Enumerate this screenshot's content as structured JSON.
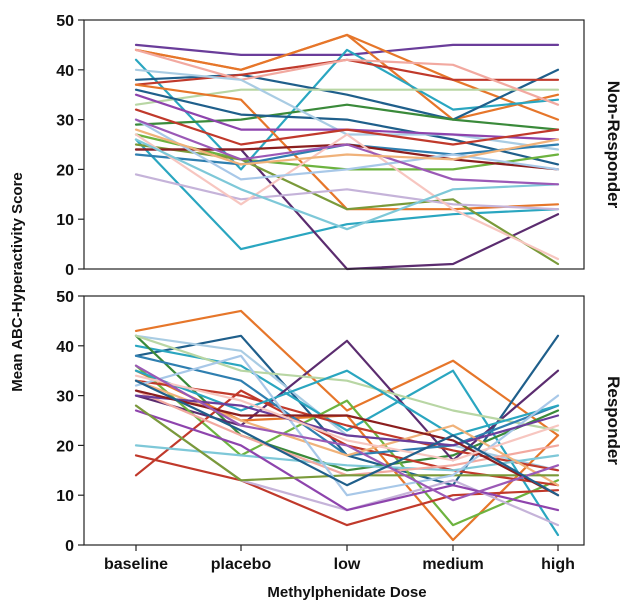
{
  "chart_data": {
    "type": "line",
    "xlabel": "Methylphenidate Dose",
    "ylabel": "Mean ABC-Hyperactivity Score",
    "categories": [
      "baseline",
      "placebo",
      "low",
      "medium",
      "high"
    ],
    "ylim": [
      0,
      50
    ],
    "yticks": [
      0,
      10,
      20,
      30,
      40,
      50
    ],
    "grid": false,
    "panels": [
      {
        "strip_label": "Non-Responder",
        "series": [
          {
            "color": "#6a3d9a",
            "values": [
              45,
              43,
              43,
              45,
              45
            ]
          },
          {
            "color": "#e6762a",
            "values": [
              44,
              40,
              47,
              30,
              35
            ]
          },
          {
            "color": "#e6762a",
            "values": [
              44,
              40,
              47,
              38,
              30
            ]
          },
          {
            "color": "#2aa6c0",
            "values": [
              42,
              20,
              44,
              32,
              34
            ]
          },
          {
            "color": "#1f5f8b",
            "values": [
              38,
              39,
              35,
              30,
              40
            ]
          },
          {
            "color": "#c0392b",
            "values": [
              37,
              39,
              42,
              38,
              38
            ]
          },
          {
            "color": "#b8d6a4",
            "values": [
              33,
              36,
              36,
              36,
              36
            ]
          },
          {
            "color": "#f2a9a0",
            "values": [
              44,
              38,
              42,
              41,
              33
            ]
          },
          {
            "color": "#3a8a3a",
            "values": [
              29,
              30,
              33,
              30,
              28
            ]
          },
          {
            "color": "#e6762a",
            "values": [
              37,
              34,
              12,
              12,
              13
            ]
          },
          {
            "color": "#1f5f8b",
            "values": [
              36,
              31,
              30,
              26,
              21
            ]
          },
          {
            "color": "#a9cce3",
            "values": [
              40,
              38,
              27,
              27,
              24
            ]
          },
          {
            "color": "#8e44ad",
            "values": [
              35,
              28,
              28,
              27,
              26
            ]
          },
          {
            "color": "#c0392b",
            "values": [
              32,
              25,
              28,
              25,
              28
            ]
          },
          {
            "color": "#6db33f",
            "values": [
              27,
              22,
              20,
              20,
              23
            ]
          },
          {
            "color": "#2aa6c0",
            "values": [
              26,
              4,
              9,
              11,
              12
            ]
          },
          {
            "color": "#5b2c6f",
            "values": [
              24,
              24,
              0,
              1,
              11
            ]
          },
          {
            "color": "#7a9a3a",
            "values": [
              25,
              22,
              12,
              14,
              1
            ]
          },
          {
            "color": "#c5b3d9",
            "values": [
              19,
              14,
              16,
              13,
              12
            ]
          },
          {
            "color": "#2f7fb0",
            "values": [
              23,
              21,
              25,
              23,
              25
            ]
          },
          {
            "color": "#8b1e1e",
            "values": [
              24,
              24,
              25,
              22,
              20
            ]
          },
          {
            "color": "#f7c6c0",
            "values": [
              27,
              13,
              27,
              12,
              2
            ]
          },
          {
            "color": "#7ec8d8",
            "values": [
              26,
              16,
              8,
              16,
              17
            ]
          },
          {
            "color": "#a8c8e8",
            "values": [
              30,
              18,
              20,
              23,
              20
            ]
          },
          {
            "color": "#9b59b6",
            "values": [
              30,
              22,
              25,
              18,
              17
            ]
          },
          {
            "color": "#f0b27a",
            "values": [
              28,
              21,
              23,
              22,
              26
            ]
          }
        ]
      },
      {
        "strip_label": "Responder",
        "series": [
          {
            "color": "#e6762a",
            "values": [
              43,
              47,
              27,
              37,
              22
            ]
          },
          {
            "color": "#1f5f8b",
            "values": [
              38,
              42,
              18,
              12,
              42
            ]
          },
          {
            "color": "#a9cce3",
            "values": [
              42,
              39,
              22,
              20,
              15
            ]
          },
          {
            "color": "#2aa6c0",
            "values": [
              40,
              36,
              23,
              35,
              2
            ]
          },
          {
            "color": "#3a8a3a",
            "values": [
              42,
              22,
              15,
              18,
              27
            ]
          },
          {
            "color": "#5b2c6f",
            "values": [
              30,
              24,
              41,
              17,
              35
            ]
          },
          {
            "color": "#b8d6a4",
            "values": [
              42,
              35,
              33,
              27,
              23
            ]
          },
          {
            "color": "#e6762a",
            "values": [
              35,
              25,
              26,
              1,
              22
            ]
          },
          {
            "color": "#6db33f",
            "values": [
              36,
              18,
              29,
              4,
              13
            ]
          },
          {
            "color": "#c0392b",
            "values": [
              33,
              30,
              24,
              19,
              15
            ]
          },
          {
            "color": "#c0392b",
            "values": [
              18,
              13,
              4,
              10,
              11
            ]
          },
          {
            "color": "#c0392b",
            "values": [
              14,
              31,
              20,
              15,
              12
            ]
          },
          {
            "color": "#2f7fb0",
            "values": [
              38,
              33,
              18,
              20,
              28
            ]
          },
          {
            "color": "#2aa6c0",
            "values": [
              35,
              27,
              35,
              22,
              28
            ]
          },
          {
            "color": "#7ec8d8",
            "values": [
              20,
              18,
              16,
              15,
              18
            ]
          },
          {
            "color": "#c5b3d9",
            "values": [
              28,
              13,
              7,
              13,
              4
            ]
          },
          {
            "color": "#f2a9a0",
            "values": [
              31,
              22,
              14,
              16,
              20
            ]
          },
          {
            "color": "#8e44ad",
            "values": [
              27,
              20,
              7,
              12,
              7
            ]
          },
          {
            "color": "#f0b27a",
            "values": [
              33,
              25,
              18,
              24,
              12
            ]
          },
          {
            "color": "#7a9a3a",
            "values": [
              28,
              13,
              14,
              14,
              14
            ]
          },
          {
            "color": "#a8c8e8",
            "values": [
              32,
              38,
              10,
              14,
              30
            ]
          },
          {
            "color": "#6a3d9a",
            "values": [
              30,
              28,
              22,
              20,
              26
            ]
          },
          {
            "color": "#8b1e1e",
            "values": [
              31,
              26,
              26,
              21,
              10
            ]
          },
          {
            "color": "#f7c6c0",
            "values": [
              34,
              29,
              21,
              17,
              24
            ]
          },
          {
            "color": "#9b59b6",
            "values": [
              36,
              24,
              20,
              9,
              16
            ]
          },
          {
            "color": "#1f5f8b",
            "values": [
              33,
              23,
              12,
              22,
              10
            ]
          }
        ]
      }
    ]
  }
}
